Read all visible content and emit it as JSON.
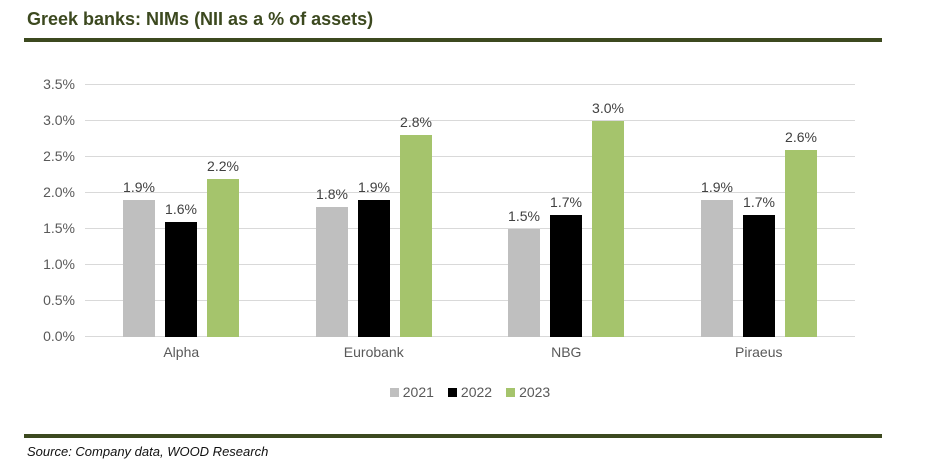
{
  "header": {
    "title": "Greek banks: NIMs (NII as a % of assets)"
  },
  "footer": {
    "source": "Source: Company data, WOOD Research"
  },
  "colors": {
    "accent_olive": "#3c491f",
    "gridline": "#d9d9d9",
    "axis_text": "#595959",
    "value_label_text": "#404040",
    "series_2021": "#bfbfbf",
    "series_2022": "#000000",
    "series_2023": "#a5c46c"
  },
  "chart_data": {
    "type": "bar",
    "title": "Greek banks: NIMs (NII as a % of assets)",
    "categories": [
      "Alpha",
      "Eurobank",
      "NBG",
      "Piraeus"
    ],
    "series": [
      {
        "name": "2021",
        "color": "#bfbfbf",
        "values": [
          1.9,
          1.8,
          1.5,
          1.9
        ],
        "labels": [
          "1.9%",
          "1.8%",
          "1.5%",
          "1.9%"
        ]
      },
      {
        "name": "2022",
        "color": "#000000",
        "values": [
          1.6,
          1.9,
          1.7,
          1.7
        ],
        "labels": [
          "1.6%",
          "1.9%",
          "1.7%",
          "1.7%"
        ]
      },
      {
        "name": "2023",
        "color": "#a5c46c",
        "values": [
          2.2,
          2.8,
          3.0,
          2.6
        ],
        "labels": [
          "2.2%",
          "2.8%",
          "3.0%",
          "2.6%"
        ]
      }
    ],
    "xlabel": "",
    "ylabel": "",
    "unit": "%",
    "ylim": [
      0,
      3.5
    ],
    "ytick_step": 0.5,
    "ytick_labels": [
      "0.0%",
      "0.5%",
      "1.0%",
      "1.5%",
      "2.0%",
      "2.5%",
      "3.0%",
      "3.5%"
    ],
    "grid": true,
    "legend_position": "bottom-center"
  }
}
